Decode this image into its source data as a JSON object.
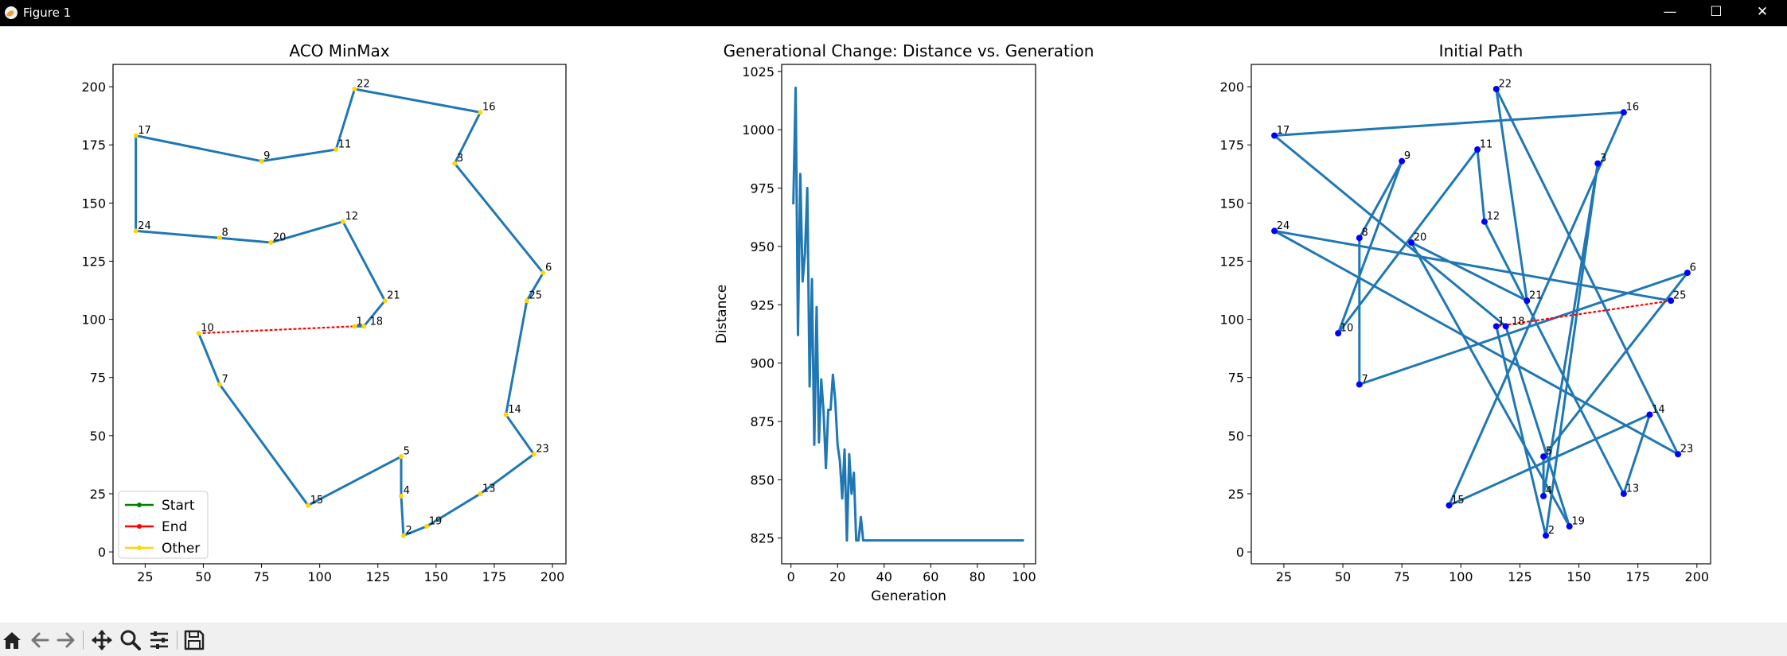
{
  "window": {
    "title": "Figure 1",
    "controls": {
      "minimize": "—",
      "maximize": "☐",
      "close": "✕"
    }
  },
  "toolbar": {
    "buttons": [
      "home-icon",
      "back-icon",
      "forward-icon",
      "pan-icon",
      "zoom-icon",
      "configure-subplots-icon",
      "save-icon"
    ]
  },
  "colors": {
    "path": "#1f77b4",
    "closing": "#ff0000",
    "start": "#008000",
    "end": "#ff0000",
    "other": "#ffd700",
    "initial_nodes": "#0000ff"
  },
  "chart_data": [
    {
      "type": "line",
      "title": "ACO MinMax",
      "xlim": [
        11.2,
        205.8
      ],
      "ylim": [
        -5.1,
        209.6
      ],
      "xticks": [
        25,
        50,
        75,
        100,
        125,
        150,
        175,
        200
      ],
      "yticks": [
        0,
        25,
        50,
        75,
        100,
        125,
        150,
        175,
        200
      ],
      "grid": false,
      "legend": {
        "placement": "lower left",
        "entries": [
          {
            "label": "Start",
            "color": "#008000"
          },
          {
            "label": "End",
            "color": "#ff0000"
          },
          {
            "label": "Other",
            "color": "#ffd700"
          }
        ]
      },
      "points": [
        {
          "id": "1",
          "x": 115,
          "y": 97
        },
        {
          "id": "18",
          "x": 119,
          "y": 97
        },
        {
          "id": "21",
          "x": 128,
          "y": 108
        },
        {
          "id": "12",
          "x": 110,
          "y": 142
        },
        {
          "id": "20",
          "x": 79,
          "y": 133
        },
        {
          "id": "8",
          "x": 57,
          "y": 135
        },
        {
          "id": "24",
          "x": 21,
          "y": 138
        },
        {
          "id": "17",
          "x": 21,
          "y": 179
        },
        {
          "id": "9",
          "x": 75,
          "y": 168
        },
        {
          "id": "11",
          "x": 107,
          "y": 173
        },
        {
          "id": "22",
          "x": 115,
          "y": 199
        },
        {
          "id": "16",
          "x": 169,
          "y": 189
        },
        {
          "id": "3",
          "x": 158,
          "y": 167
        },
        {
          "id": "6",
          "x": 196,
          "y": 120
        },
        {
          "id": "25",
          "x": 189,
          "y": 108
        },
        {
          "id": "14",
          "x": 180,
          "y": 59
        },
        {
          "id": "23",
          "x": 192,
          "y": 42
        },
        {
          "id": "13",
          "x": 169,
          "y": 25
        },
        {
          "id": "19",
          "x": 146,
          "y": 11
        },
        {
          "id": "2",
          "x": 136,
          "y": 7
        },
        {
          "id": "4",
          "x": 135,
          "y": 24
        },
        {
          "id": "5",
          "x": 135,
          "y": 41
        },
        {
          "id": "15",
          "x": 95,
          "y": 20
        },
        {
          "id": "7",
          "x": 57,
          "y": 72
        },
        {
          "id": "10",
          "x": 48,
          "y": 94
        }
      ],
      "label_offsets": {
        "1": [
          0.7,
          0.7
        ],
        "18": [
          2.5,
          0.7
        ]
      }
    },
    {
      "type": "line",
      "title": "Generational Change: Distance vs. Generation",
      "xlabel": "Generation",
      "ylabel": "Distance",
      "xlim": [
        -4,
        105
      ],
      "ylim": [
        814,
        1028
      ],
      "xticks": [
        0,
        20,
        40,
        60,
        80,
        100
      ],
      "yticks": [
        825,
        850,
        875,
        900,
        925,
        950,
        975,
        1000,
        1025
      ],
      "grid": false,
      "x": [
        1,
        2,
        3,
        4,
        5,
        6,
        7,
        8,
        9,
        10,
        11,
        12,
        13,
        14,
        15,
        16,
        17,
        18,
        19,
        20,
        21,
        22,
        23,
        24,
        25,
        26,
        27,
        28,
        29,
        30,
        31,
        32,
        33,
        100
      ],
      "y": [
        968,
        1018,
        912,
        981,
        935,
        947,
        975,
        890,
        936,
        865,
        924,
        866,
        893,
        879,
        855,
        880,
        880,
        895,
        884,
        865,
        858,
        842,
        863,
        824,
        861,
        844,
        853,
        824,
        824,
        834,
        824,
        824,
        824,
        824
      ]
    },
    {
      "type": "line",
      "title": "Initial Path",
      "xlim": [
        11.2,
        205.8
      ],
      "ylim": [
        -5.1,
        209.6
      ],
      "xticks": [
        25,
        50,
        75,
        100,
        125,
        150,
        175,
        200
      ],
      "yticks": [
        0,
        25,
        50,
        75,
        100,
        125,
        150,
        175,
        200
      ],
      "grid": false,
      "points": [
        {
          "id": "1",
          "x": 115,
          "y": 97
        },
        {
          "id": "2",
          "x": 136,
          "y": 7
        },
        {
          "id": "3",
          "x": 158,
          "y": 167
        },
        {
          "id": "4",
          "x": 135,
          "y": 24
        },
        {
          "id": "5",
          "x": 135,
          "y": 41
        },
        {
          "id": "6",
          "x": 196,
          "y": 120
        },
        {
          "id": "7",
          "x": 57,
          "y": 72
        },
        {
          "id": "8",
          "x": 57,
          "y": 135
        },
        {
          "id": "9",
          "x": 75,
          "y": 168
        },
        {
          "id": "10",
          "x": 48,
          "y": 94
        },
        {
          "id": "11",
          "x": 107,
          "y": 173
        },
        {
          "id": "12",
          "x": 110,
          "y": 142
        },
        {
          "id": "13",
          "x": 169,
          "y": 25
        },
        {
          "id": "14",
          "x": 180,
          "y": 59
        },
        {
          "id": "15",
          "x": 95,
          "y": 20
        },
        {
          "id": "16",
          "x": 169,
          "y": 189
        },
        {
          "id": "17",
          "x": 21,
          "y": 179
        },
        {
          "id": "18",
          "x": 119,
          "y": 97
        },
        {
          "id": "19",
          "x": 146,
          "y": 11
        },
        {
          "id": "20",
          "x": 79,
          "y": 133
        },
        {
          "id": "21",
          "x": 128,
          "y": 108
        },
        {
          "id": "22",
          "x": 115,
          "y": 199
        },
        {
          "id": "23",
          "x": 192,
          "y": 42
        },
        {
          "id": "24",
          "x": 21,
          "y": 138
        },
        {
          "id": "25",
          "x": 189,
          "y": 108
        }
      ],
      "label_offsets": {
        "1": [
          0.7,
          0.7
        ],
        "18": [
          2.5,
          0.7
        ]
      }
    }
  ]
}
